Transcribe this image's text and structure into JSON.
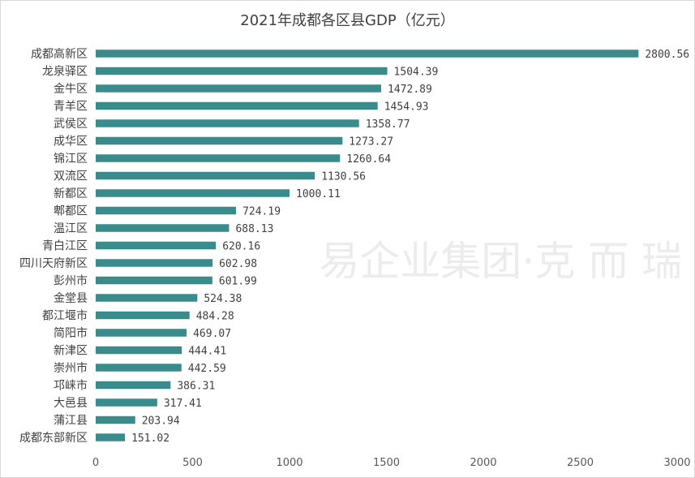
{
  "chart_data": {
    "type": "bar",
    "orientation": "horizontal",
    "title": "2021年成都各区县GDP（亿元）",
    "categories": [
      "成都高新区",
      "龙泉驿区",
      "金牛区",
      "青羊区",
      "武侯区",
      "成华区",
      "锦江区",
      "双流区",
      "新都区",
      "郫都区",
      "温江区",
      "青白江区",
      "四川天府新区",
      "彭州市",
      "金堂县",
      "都江堰市",
      "简阳市",
      "新津区",
      "崇州市",
      "邛崃市",
      "大邑县",
      "蒲江县",
      "成都东部新区"
    ],
    "values": [
      2800.56,
      1504.39,
      1472.89,
      1454.93,
      1358.77,
      1273.27,
      1260.64,
      1130.56,
      1000.11,
      724.19,
      688.13,
      620.16,
      602.98,
      601.99,
      524.38,
      484.28,
      469.07,
      444.41,
      442.59,
      386.31,
      317.41,
      203.94,
      151.02
    ],
    "value_labels": [
      "2800.56",
      "1504.39",
      "1472.89",
      "1454.93",
      "1358.77",
      "1273.27",
      "1260.64",
      "1130.56",
      "1000.11",
      "724.19",
      "688.13",
      "620.16",
      "602.98",
      "601.99",
      "524.38",
      "484.28",
      "469.07",
      "444.41",
      "442.59",
      "386.31",
      "317.41",
      "203.94",
      "151.02"
    ],
    "xlim": [
      0,
      3000
    ],
    "xticks": [
      "0",
      "500",
      "1000",
      "1500",
      "2000",
      "2500",
      "3000"
    ],
    "grid": false,
    "legend": "none",
    "bar_color": "#3a8c8c"
  },
  "watermark": "易企业集团·克 而 瑞"
}
